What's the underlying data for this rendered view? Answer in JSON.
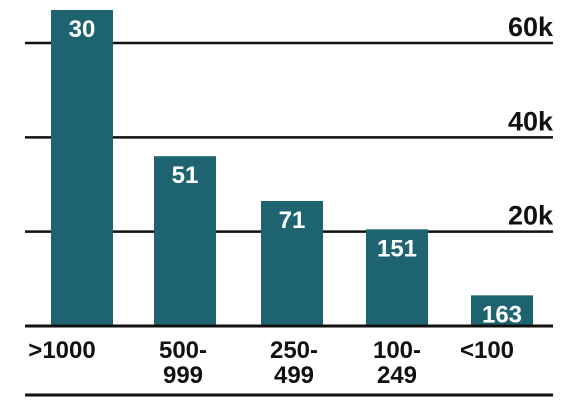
{
  "chart_data": {
    "type": "bar",
    "title": "",
    "xlabel": "",
    "ylabel": "",
    "ylim": [
      0,
      60000
    ],
    "y_ticks": [
      {
        "value": 20000,
        "label": "20k"
      },
      {
        "value": 40000,
        "label": "40k"
      },
      {
        "value": 60000,
        "label": "60k"
      }
    ],
    "grid": true,
    "categories": [
      {
        "line1": ">1000",
        "line2": ""
      },
      {
        "line1": "500-",
        "line2": "999"
      },
      {
        "line1": "250-",
        "line2": "499"
      },
      {
        "line1": "100-",
        "line2": "249"
      },
      {
        "line1": "<100",
        "line2": ""
      }
    ],
    "values": [
      67000,
      36000,
      26500,
      20500,
      6500
    ],
    "data_labels": [
      "30",
      "51",
      "71",
      "151",
      "163"
    ],
    "bar_color": "#1e6470"
  }
}
